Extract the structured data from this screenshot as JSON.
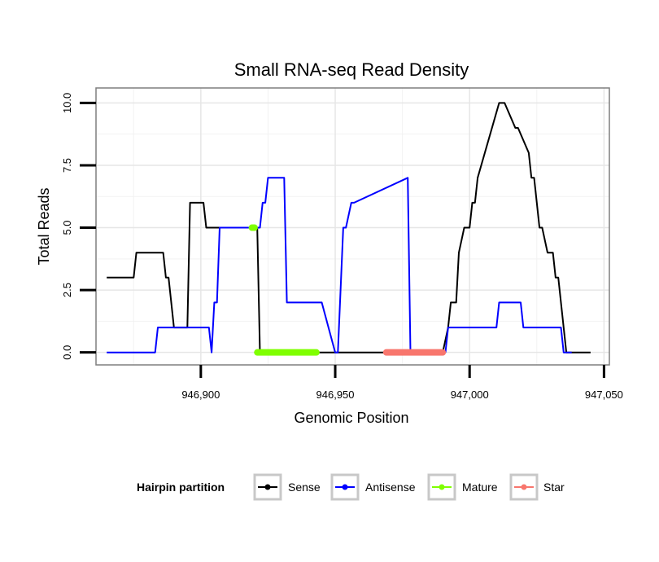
{
  "chart_data": {
    "type": "line",
    "title": "Small RNA-seq Read Density",
    "xlabel": "Genomic Position",
    "ylabel": "Total Reads",
    "xlim": [
      946861,
      947052
    ],
    "ylim": [
      -0.5,
      10.6
    ],
    "xticks": [
      946900,
      946950,
      947000,
      947050
    ],
    "xtick_labels": [
      "946,900",
      "946,950",
      "947,000",
      "947,050"
    ],
    "yticks": [
      0,
      2.5,
      5,
      7.5,
      10
    ],
    "ytick_labels": [
      "0.0",
      "2.5",
      "5.0",
      "7.5",
      "10.0"
    ],
    "grid": true,
    "legend": {
      "title": "Hairpin partition",
      "position": "bottom",
      "entries": [
        "Sense",
        "Antisense",
        "Mature",
        "Star"
      ]
    },
    "series": [
      {
        "name": "Sense",
        "color": "#000000",
        "x": [
          946865,
          946875,
          946876,
          946886,
          946887,
          946888,
          946890,
          946891,
          946893,
          946895,
          946896,
          946901,
          946902,
          946915,
          946920,
          946921,
          946922,
          946945,
          946950,
          946990,
          946992,
          946993,
          946995,
          946996,
          946998,
          947000,
          947001,
          947002,
          947003,
          947011,
          947012,
          947013,
          947017,
          947018,
          947022,
          947023,
          947024,
          947025,
          947026,
          947027,
          947029,
          947030,
          947031,
          947032,
          947033,
          947035,
          947036,
          947037,
          947038,
          947039,
          947040,
          947045
        ],
        "y": [
          3,
          3,
          4,
          4,
          3,
          3,
          1,
          1,
          1,
          1,
          6,
          6,
          5,
          5,
          5,
          5,
          0,
          0,
          0,
          0,
          1,
          2,
          2,
          4,
          5,
          5,
          6,
          6,
          7,
          10,
          10,
          10,
          9,
          9,
          8,
          7,
          7,
          6,
          5,
          5,
          4,
          4,
          4,
          3,
          3,
          1,
          0,
          0,
          0,
          0,
          0,
          0
        ]
      },
      {
        "name": "Antisense",
        "color": "#0000FF",
        "x": [
          946865,
          946883,
          946884,
          946894,
          946895,
          946903,
          946904,
          946905,
          946906,
          946907,
          946921,
          946922,
          946923,
          946924,
          946925,
          946927,
          946931,
          946932,
          946945,
          946950,
          946951,
          946953,
          946954,
          946956,
          946957,
          946977,
          946978,
          946990,
          946991,
          946992,
          947000,
          947001,
          947010,
          947011,
          947019,
          947020,
          947034,
          947035,
          947038
        ],
        "y": [
          0,
          0,
          1,
          1,
          1,
          1,
          0,
          2,
          2,
          5,
          5,
          5,
          6,
          6,
          7,
          7,
          7,
          2,
          2,
          0,
          0,
          5,
          5,
          6,
          6,
          7,
          0,
          0,
          0,
          1,
          1,
          1,
          1,
          2,
          2,
          1,
          1,
          0,
          0
        ]
      },
      {
        "name": "Mature",
        "color": "#7FFF00",
        "segments": [
          [
            946919,
            946920
          ],
          [
            946921,
            946943
          ]
        ],
        "value": [
          5,
          0
        ]
      },
      {
        "name": "Star",
        "color": "#F8766D",
        "segments": [
          [
            946969,
            946990
          ]
        ],
        "value": [
          0
        ]
      }
    ]
  }
}
